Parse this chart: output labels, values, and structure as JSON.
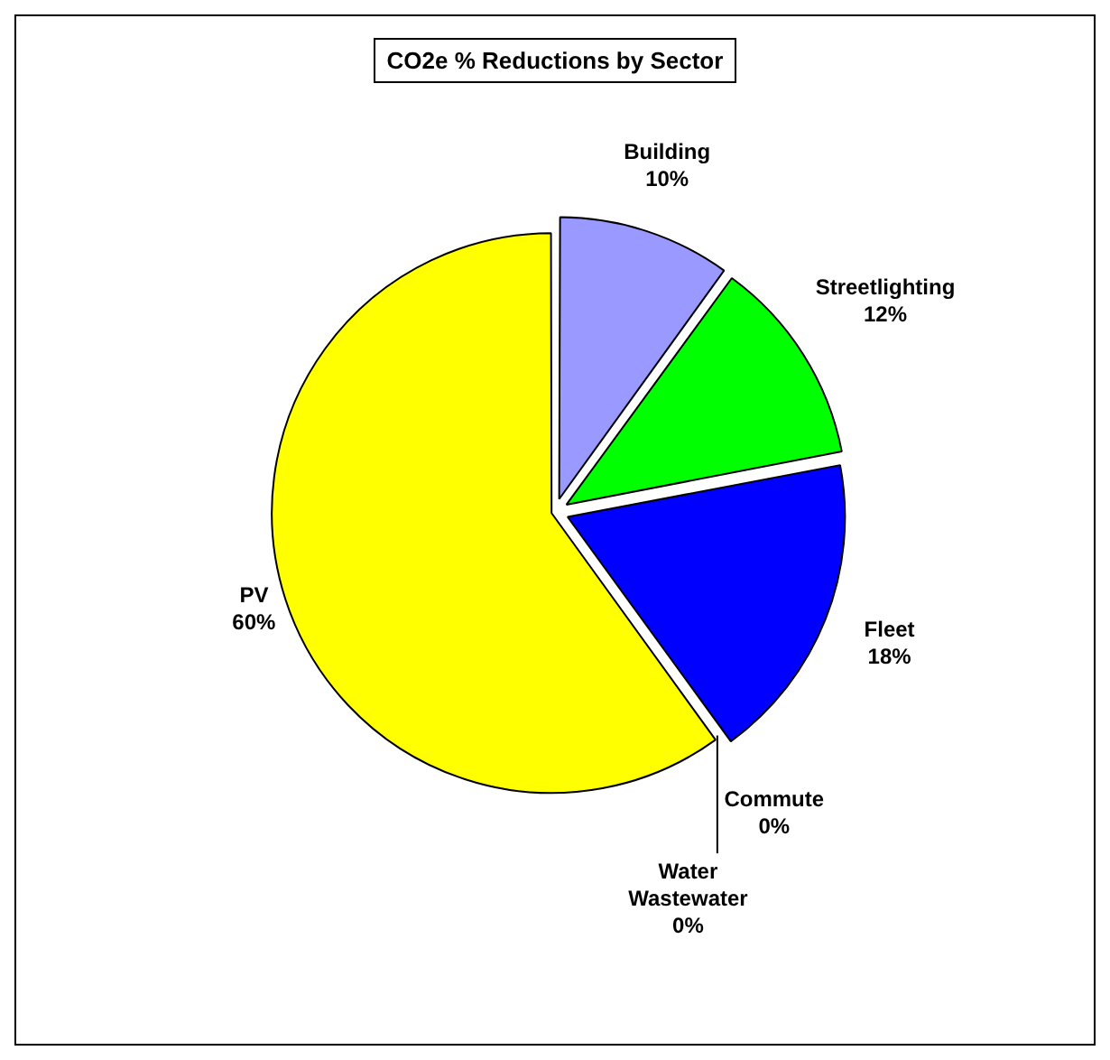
{
  "chart_data": {
    "type": "pie",
    "title": "CO2e % Reductions by Sector",
    "categories": [
      "Building",
      "Streetlighting",
      "Fleet",
      "Commute",
      "Water Wastewater",
      "PV"
    ],
    "values": [
      10,
      12,
      18,
      0,
      0,
      60
    ],
    "colors": [
      "#9999ff",
      "#00ff00",
      "#0000ff",
      "#000080",
      "#00ffff",
      "#ffff00"
    ],
    "value_labels": [
      "10%",
      "12%",
      "18%",
      "0%",
      "0%",
      "60%"
    ],
    "legend": false
  }
}
